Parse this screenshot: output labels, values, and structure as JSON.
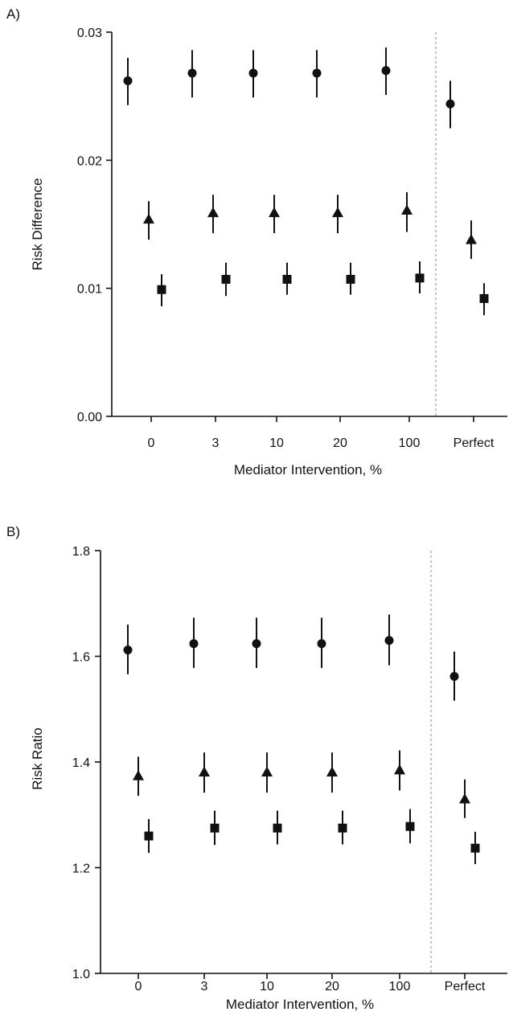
{
  "chart_data": [
    {
      "type": "scatter",
      "panel_label": "A)",
      "xlabel": "Mediator Intervention, %",
      "ylabel": "Risk Difference",
      "categories": [
        "0",
        "3",
        "10",
        "20",
        "100",
        "Perfect"
      ],
      "ylim": [
        0,
        0.03
      ],
      "yticks": [
        "0.00",
        "0.01",
        "0.02",
        "0.03"
      ],
      "ytick_values": [
        0,
        0.01,
        0.02,
        0.03
      ],
      "grid": false,
      "separator_after_category": "100",
      "series": [
        {
          "marker": "circle",
          "values": [
            0.0262,
            0.0268,
            0.0268,
            0.0268,
            0.027,
            0.0244
          ],
          "lower": [
            0.0243,
            0.0249,
            0.0249,
            0.0249,
            0.0251,
            0.0225
          ],
          "upper": [
            0.028,
            0.0286,
            0.0286,
            0.0286,
            0.0288,
            0.0262
          ]
        },
        {
          "marker": "triangle",
          "values": [
            0.0154,
            0.0159,
            0.0159,
            0.0159,
            0.0161,
            0.0138
          ],
          "lower": [
            0.0138,
            0.0143,
            0.0143,
            0.0143,
            0.0144,
            0.0123
          ],
          "upper": [
            0.0168,
            0.0173,
            0.0173,
            0.0173,
            0.0175,
            0.0153
          ]
        },
        {
          "marker": "square",
          "values": [
            0.0099,
            0.0107,
            0.0107,
            0.0107,
            0.0108,
            0.0092
          ],
          "lower": [
            0.0086,
            0.0094,
            0.0095,
            0.0095,
            0.0096,
            0.0079
          ],
          "upper": [
            0.0111,
            0.012,
            0.012,
            0.012,
            0.0121,
            0.0104
          ]
        }
      ]
    },
    {
      "type": "scatter",
      "panel_label": "B)",
      "xlabel": "Mediator Intervention, %",
      "ylabel": "Risk Ratio",
      "categories": [
        "0",
        "3",
        "10",
        "20",
        "100",
        "Perfect"
      ],
      "ylim": [
        1.0,
        1.8
      ],
      "yticks": [
        "1.0",
        "1.2",
        "1.4",
        "1.6",
        "1.8"
      ],
      "ytick_values": [
        1.0,
        1.2,
        1.4,
        1.6,
        1.8
      ],
      "grid": false,
      "separator_after_category": "100",
      "series": [
        {
          "marker": "circle",
          "values": [
            1.612,
            1.624,
            1.624,
            1.624,
            1.63,
            1.562
          ],
          "lower": [
            1.566,
            1.578,
            1.578,
            1.578,
            1.583,
            1.516
          ],
          "upper": [
            1.66,
            1.673,
            1.673,
            1.673,
            1.679,
            1.609
          ]
        },
        {
          "marker": "triangle",
          "values": [
            1.374,
            1.381,
            1.381,
            1.381,
            1.385,
            1.33
          ],
          "lower": [
            1.336,
            1.342,
            1.342,
            1.342,
            1.346,
            1.294
          ],
          "upper": [
            1.41,
            1.418,
            1.418,
            1.418,
            1.422,
            1.367
          ]
        },
        {
          "marker": "square",
          "values": [
            1.26,
            1.275,
            1.275,
            1.275,
            1.278,
            1.237
          ],
          "lower": [
            1.228,
            1.243,
            1.244,
            1.244,
            1.246,
            1.207
          ],
          "upper": [
            1.292,
            1.308,
            1.308,
            1.308,
            1.311,
            1.268
          ]
        }
      ]
    }
  ]
}
